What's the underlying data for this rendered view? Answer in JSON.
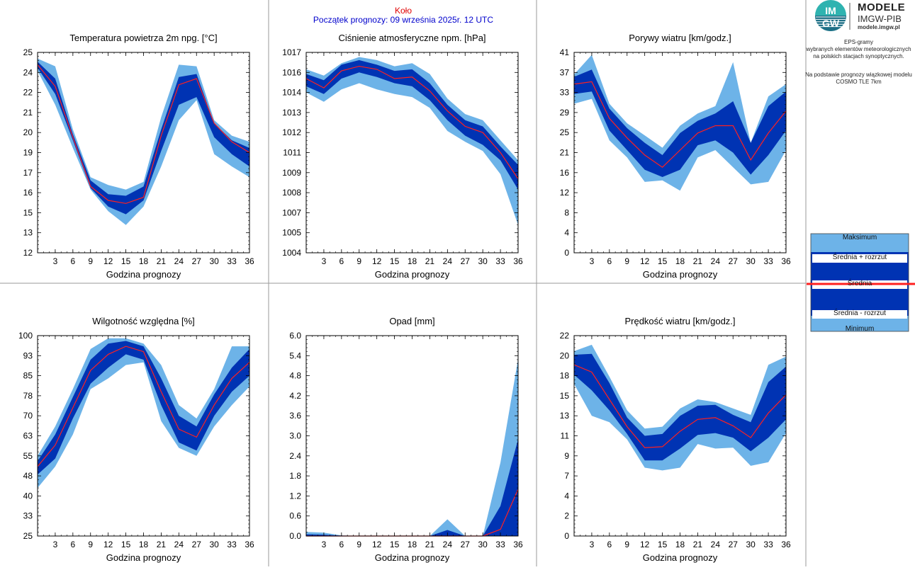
{
  "header": {
    "station": "Koło",
    "forecast_start": "Początek prognozy: 09 września 2025r. 12 UTC"
  },
  "brand": {
    "logo_letters": "IMGW",
    "line1": "MODELE",
    "line2": "IMGW-PIB",
    "line3": "modele.imgw.pl"
  },
  "info": {
    "line1": "EPS-gramy",
    "line2": "wybranych elementów meteorologicznych",
    "line3": "na polskich stacjach  synoptycznych.",
    "line4": "Na podstawie prognozy wiązkowej modelu",
    "line5": "COSMO TLE 7km"
  },
  "legend": {
    "max": "Maksimum",
    "mean_plus": "Średnia + rozrzut",
    "mean": "Średnia",
    "mean_minus": "Średnia - rozrzut",
    "min": "Minimum"
  },
  "colors": {
    "light_band": "#6db3e8",
    "dark_band": "#0033b3",
    "mean_line": "#ff2020",
    "station_title": "#e00000",
    "start_title": "#0000cc"
  },
  "chart_data": [
    {
      "type": "area",
      "title": "Temperatura powietrza 2m npg. [°C]",
      "xlabel": "Godzina prognozy",
      "x": [
        0,
        3,
        6,
        9,
        12,
        15,
        18,
        21,
        24,
        27,
        30,
        33,
        36
      ],
      "xticks": [
        "3",
        "6",
        "9",
        "12",
        "15",
        "18",
        "21",
        "24",
        "27",
        "30",
        "33",
        "36"
      ],
      "yticks": [
        "12",
        "13",
        "15",
        "16",
        "17",
        "19",
        "20",
        "21",
        "22",
        "24",
        "25"
      ],
      "ylim": [
        12,
        25
      ],
      "series": [
        {
          "name": "Maksimum",
          "values": [
            24.6,
            24.1,
            20.0,
            16.9,
            16.4,
            16.1,
            16.6,
            20.8,
            24.2,
            24.1,
            20.6,
            19.6,
            19.2
          ]
        },
        {
          "name": "Średnia + rozrzut",
          "values": [
            24.4,
            23.3,
            19.7,
            16.7,
            15.8,
            15.7,
            16.3,
            20.0,
            23.4,
            23.6,
            20.4,
            19.3,
            18.8
          ]
        },
        {
          "name": "Średnia",
          "values": [
            24.2,
            22.8,
            19.5,
            16.3,
            15.4,
            15.2,
            15.6,
            19.6,
            22.9,
            23.3,
            20.4,
            19.2,
            18.5
          ]
        },
        {
          "name": "Średnia - rozrzut",
          "values": [
            24.0,
            22.3,
            19.3,
            16.2,
            15.0,
            14.5,
            15.4,
            18.6,
            21.6,
            22.1,
            19.5,
            18.4,
            17.6
          ]
        },
        {
          "name": "Minimum",
          "values": [
            23.8,
            21.6,
            18.8,
            16.1,
            14.7,
            13.8,
            15.0,
            17.6,
            20.6,
            21.9,
            18.4,
            17.6,
            16.9
          ]
        }
      ]
    },
    {
      "type": "area",
      "title": "Ciśnienie atmosferyczne npm. [hPa]",
      "xlabel": "Godzina prognozy",
      "x": [
        0,
        3,
        6,
        9,
        12,
        15,
        18,
        21,
        24,
        27,
        30,
        33,
        36
      ],
      "xticks": [
        "3",
        "6",
        "9",
        "12",
        "15",
        "18",
        "21",
        "24",
        "27",
        "30",
        "33",
        "36"
      ],
      "yticks": [
        "1004",
        "1005",
        "1007",
        "1008",
        "1009",
        "1011",
        "1012",
        "1013",
        "1014",
        "1016",
        "1017"
      ],
      "ylim": [
        1004,
        1017
      ],
      "series": [
        {
          "name": "Maksimum",
          "values": [
            1015.9,
            1015.5,
            1016.3,
            1016.7,
            1016.5,
            1016.1,
            1016.3,
            1015.6,
            1014.0,
            1013.0,
            1012.6,
            1011.3,
            1010.0
          ]
        },
        {
          "name": "Średnia + rozrzut",
          "values": [
            1015.6,
            1015.2,
            1016.2,
            1016.5,
            1016.2,
            1015.8,
            1015.9,
            1015.0,
            1013.6,
            1012.6,
            1012.2,
            1010.9,
            1009.7
          ]
        },
        {
          "name": "Średnia",
          "values": [
            1015.3,
            1014.7,
            1015.8,
            1016.1,
            1015.9,
            1015.3,
            1015.4,
            1014.5,
            1013.2,
            1012.2,
            1011.8,
            1010.5,
            1008.8
          ]
        },
        {
          "name": "Średnia - rozrzut",
          "values": [
            1014.8,
            1014.3,
            1015.3,
            1015.7,
            1015.4,
            1015.0,
            1014.8,
            1013.9,
            1012.6,
            1011.6,
            1011.0,
            1010.0,
            1008.1
          ]
        },
        {
          "name": "Minimum",
          "values": [
            1014.4,
            1013.8,
            1014.6,
            1015.0,
            1014.6,
            1014.3,
            1014.1,
            1013.4,
            1011.9,
            1011.2,
            1010.6,
            1009.1,
            1005.8
          ]
        }
      ]
    },
    {
      "type": "area",
      "title": "Porywy wiatru [km/godz.]",
      "xlabel": "Godzina prognozy",
      "x": [
        0,
        3,
        6,
        9,
        12,
        15,
        18,
        21,
        24,
        27,
        30,
        33,
        36
      ],
      "xticks": [
        "3",
        "6",
        "9",
        "12",
        "15",
        "18",
        "21",
        "24",
        "27",
        "30",
        "33",
        "36"
      ],
      "yticks": [
        "0",
        "4",
        "8",
        "12",
        "16",
        "21",
        "25",
        "29",
        "33",
        "37",
        "41"
      ],
      "ylim": [
        0,
        41
      ],
      "series": [
        {
          "name": "Maksimum",
          "values": [
            36.5,
            40.5,
            30.5,
            26.5,
            24.0,
            21.5,
            26.0,
            28.5,
            30.0,
            39.0,
            22.5,
            32.0,
            34.5
          ]
        },
        {
          "name": "Średnia + rozrzut",
          "values": [
            36.0,
            37.5,
            29.5,
            25.5,
            22.5,
            20.0,
            24.5,
            27.0,
            28.5,
            31.0,
            22.5,
            30.0,
            33.0
          ]
        },
        {
          "name": "Średnia",
          "values": [
            34.5,
            35.0,
            27.5,
            23.5,
            20.0,
            17.5,
            21.0,
            24.5,
            26.0,
            26.0,
            19.0,
            24.5,
            29.0
          ]
        },
        {
          "name": "Średnia - rozrzut",
          "values": [
            32.5,
            33.0,
            25.0,
            21.0,
            17.0,
            15.5,
            17.0,
            22.0,
            23.0,
            20.5,
            16.0,
            20.0,
            25.0
          ]
        },
        {
          "name": "Minimum",
          "values": [
            30.5,
            31.5,
            23.0,
            19.5,
            14.5,
            14.8,
            12.7,
            19.5,
            21.0,
            17.5,
            14.0,
            14.5,
            21.0
          ]
        }
      ]
    },
    {
      "type": "area",
      "title": "Wilgotność względna [%]",
      "xlabel": "Godzina prognozy",
      "x": [
        0,
        3,
        6,
        9,
        12,
        15,
        18,
        21,
        24,
        27,
        30,
        33,
        36
      ],
      "xticks": [
        "3",
        "6",
        "9",
        "12",
        "15",
        "18",
        "21",
        "24",
        "27",
        "30",
        "33",
        "36"
      ],
      "yticks": [
        "25",
        "33",
        "40",
        "48",
        "55",
        "63",
        "70",
        "78",
        "85",
        "93",
        "100"
      ],
      "ylim": [
        25,
        100
      ],
      "series": [
        {
          "name": "Maksimum",
          "values": [
            55,
            66,
            80,
            95,
            99,
            99,
            97,
            89,
            74,
            69,
            80,
            96,
            96
          ]
        },
        {
          "name": "Średnia + rozrzut",
          "values": [
            53,
            63,
            77,
            91,
            97,
            98,
            96,
            84,
            70,
            66,
            78,
            88,
            95
          ]
        },
        {
          "name": "Średnia",
          "values": [
            51,
            59,
            73,
            87,
            93,
            96,
            94,
            79,
            65,
            62,
            74,
            84,
            90
          ]
        },
        {
          "name": "Średnia - rozrzut",
          "values": [
            48,
            54,
            69,
            82,
            88,
            93,
            91,
            74,
            60,
            57,
            70,
            79,
            85
          ]
        },
        {
          "name": "Minimum",
          "values": [
            43,
            51,
            63,
            80,
            84,
            89,
            90,
            68,
            58,
            55,
            66,
            74,
            81
          ]
        }
      ]
    },
    {
      "type": "area",
      "title": "Opad [mm]",
      "xlabel": "Godzina prognozy",
      "x": [
        0,
        3,
        6,
        9,
        12,
        15,
        18,
        21,
        24,
        27,
        30,
        33,
        36
      ],
      "xticks": [
        "3",
        "6",
        "9",
        "12",
        "15",
        "18",
        "21",
        "24",
        "27",
        "30",
        "33",
        "36"
      ],
      "yticks": [
        "0.0",
        "0.6",
        "1.2",
        "1.8",
        "2.4",
        "3.0",
        "3.6",
        "4.2",
        "4.8",
        "5.4",
        "6.0"
      ],
      "ylim": [
        0,
        6
      ],
      "series": [
        {
          "name": "Maksimum",
          "values": [
            0.12,
            0.1,
            0.02,
            0,
            0,
            0,
            0,
            0,
            0.5,
            0,
            0,
            2.2,
            5.3
          ]
        },
        {
          "name": "Średnia + rozrzut",
          "values": [
            0.05,
            0.04,
            0.01,
            0,
            0,
            0,
            0,
            0,
            0.18,
            0,
            0,
            0.9,
            2.9
          ]
        },
        {
          "name": "Średnia",
          "values": [
            0,
            0,
            0,
            0,
            0,
            0,
            0,
            0,
            0,
            0,
            0,
            0.2,
            1.4
          ]
        },
        {
          "name": "Średnia - rozrzut",
          "values": [
            0,
            0,
            0,
            0,
            0,
            0,
            0,
            0,
            0,
            0,
            0,
            0,
            0
          ]
        },
        {
          "name": "Minimum",
          "values": [
            0,
            0,
            0,
            0,
            0,
            0,
            0,
            0,
            0,
            0,
            0,
            0,
            0
          ]
        }
      ]
    },
    {
      "type": "area",
      "title": "Prędkość wiatru [km/godz.]",
      "xlabel": "Godzina prognozy",
      "x": [
        0,
        3,
        6,
        9,
        12,
        15,
        18,
        21,
        24,
        27,
        30,
        33,
        36
      ],
      "xticks": [
        "3",
        "6",
        "9",
        "12",
        "15",
        "18",
        "21",
        "24",
        "27",
        "30",
        "33",
        "36"
      ],
      "yticks": [
        "0",
        "2",
        "4",
        "7",
        "9",
        "11",
        "13",
        "15",
        "18",
        "20",
        "22"
      ],
      "ylim": [
        0,
        22
      ],
      "series": [
        {
          "name": "Maksimum",
          "values": [
            20.3,
            21.0,
            17.5,
            13.8,
            11.8,
            12.0,
            14.0,
            15.0,
            14.7,
            14.0,
            13.3,
            18.8,
            19.7
          ]
        },
        {
          "name": "Średnia + rozrzut",
          "values": [
            19.9,
            20.0,
            16.8,
            13.0,
            11.0,
            11.2,
            13.2,
            14.3,
            14.4,
            13.3,
            12.5,
            16.9,
            18.6
          ]
        },
        {
          "name": "Średnia",
          "values": [
            18.8,
            18.0,
            15.0,
            12.0,
            9.7,
            9.8,
            11.5,
            12.8,
            13.0,
            12.1,
            10.8,
            13.5,
            15.5
          ]
        },
        {
          "name": "Średnia - rozrzut",
          "values": [
            17.7,
            16.0,
            13.8,
            11.2,
            8.3,
            8.3,
            9.6,
            11.1,
            11.3,
            10.8,
            9.3,
            10.8,
            12.8
          ]
        },
        {
          "name": "Minimum",
          "values": [
            16.7,
            13.2,
            12.5,
            10.6,
            7.5,
            7.2,
            7.5,
            10.1,
            9.6,
            9.7,
            7.7,
            8.1,
            11.3
          ]
        }
      ]
    }
  ]
}
